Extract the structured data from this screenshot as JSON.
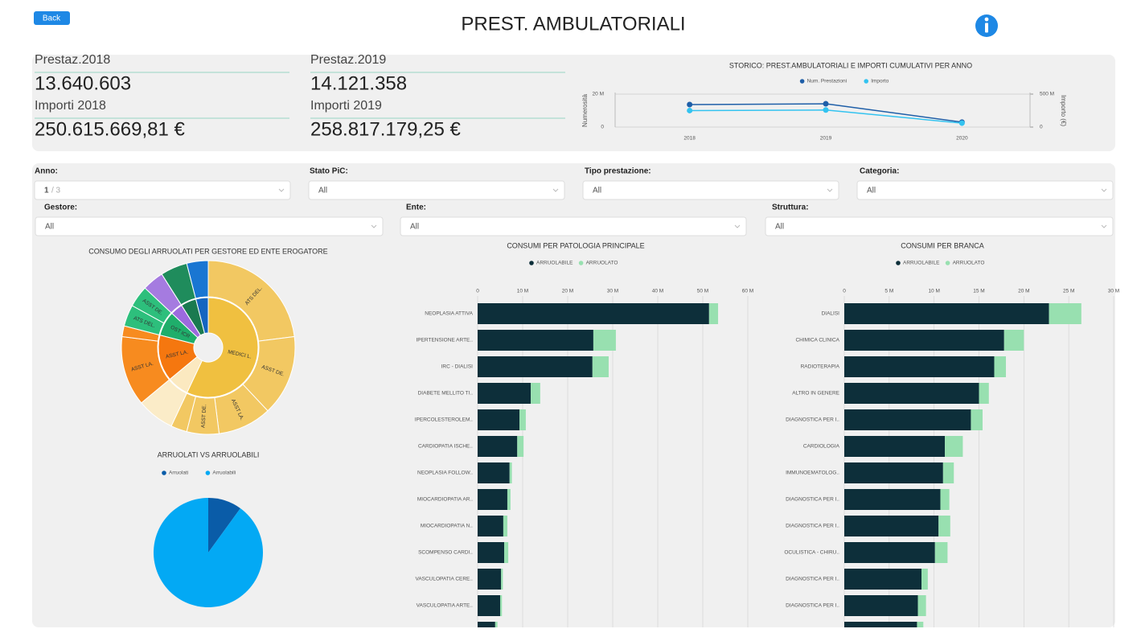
{
  "header": {
    "back": "Back",
    "title": "PREST. AMBULATORIALI"
  },
  "kpis": [
    {
      "label": "Prestaz.2018",
      "value": "13.640.603"
    },
    {
      "label": "Importi 2018",
      "value": "250.615.669,81 €"
    },
    {
      "label": "Prestaz.2019",
      "value": "14.121.358"
    },
    {
      "label": "Importi 2019",
      "value": "258.817.179,25 €"
    }
  ],
  "filters": [
    {
      "label": "Anno:",
      "value": "1",
      "count": "/ 3"
    },
    {
      "label": "Stato PiC:",
      "value": "All"
    },
    {
      "label": "Tipo prestazione:",
      "value": "All"
    },
    {
      "label": "Categoria:",
      "value": "All"
    },
    {
      "label": "Gestore:",
      "value": "All"
    },
    {
      "label": "Ente:",
      "value": "All"
    },
    {
      "label": "Struttura:",
      "value": "All"
    }
  ],
  "chart_data": [
    {
      "type": "line",
      "title": "STORICO: PREST.AMBULATORIALI E IMPORTI CUMULATIVI PER ANNO",
      "categories": [
        "2018",
        "2019",
        "2020"
      ],
      "series": [
        {
          "name": "Num. Prestazioni",
          "color": "#1f5fa8",
          "values": [
            13640603,
            14121358,
            3000000
          ]
        },
        {
          "name": "Importo",
          "color": "#33c3f0",
          "axis": "y2",
          "values": [
            250615669.81,
            258817179.25,
            60000000
          ]
        }
      ],
      "ylim": [
        0,
        20000000
      ],
      "yticks": [
        0,
        {
          "value": 20000000,
          "label": "20 M"
        }
      ],
      "y2lim": [
        0,
        500000000
      ],
      "y2ticks": [
        0,
        {
          "value": 500000000,
          "label": "500 M"
        }
      ],
      "ylabel": "Numerosità",
      "y2label": "Importo (€)",
      "legend": "top",
      "grid": true
    },
    {
      "type": "sunburst",
      "title": "CONSUMO DEGLI ARRUOLATI PER GESTORE ED ENTE EROGATORE",
      "inner": [
        {
          "label": "MEDICI L.",
          "value": 57,
          "color": "#f0c040"
        },
        {
          "label": null,
          "value": 7,
          "color": "#fbe9c0"
        },
        {
          "label": "ASST LA.",
          "value": 15,
          "color": "#f5770f"
        },
        {
          "label": "OST ICR",
          "value": 8,
          "color": "#1fae6b"
        },
        {
          "label": null,
          "value": 4,
          "color": "#9c6ade"
        },
        {
          "label": null,
          "value": 5,
          "color": "#1a7a50"
        },
        {
          "label": null,
          "value": 4,
          "color": "#1565c0"
        }
      ],
      "outer": [
        {
          "label": "ATS DEL.",
          "value": 23,
          "color": "#f2c862"
        },
        {
          "label": "ASST DE.",
          "value": 15,
          "color": "#f2c862"
        },
        {
          "label": "ASST LA.",
          "value": 10,
          "color": "#f2c862"
        },
        {
          "label": "ASST DE.",
          "value": 6,
          "color": "#f2c862"
        },
        {
          "label": null,
          "value": 3,
          "color": "#f2c862"
        },
        {
          "label": null,
          "value": 7,
          "color": "#fbecc8"
        },
        {
          "label": "ASST LA.",
          "value": 13,
          "color": "#f78b1f"
        },
        {
          "label": null,
          "value": 2,
          "color": "#f78b1f"
        },
        {
          "label": "ATS DEL.",
          "value": 4,
          "color": "#2dbf7c"
        },
        {
          "label": "ASST DE.",
          "value": 4,
          "color": "#2dbf7c"
        },
        {
          "label": null,
          "value": 4,
          "color": "#a57be0"
        },
        {
          "label": null,
          "value": 5,
          "color": "#1f8c5c"
        },
        {
          "label": null,
          "value": 4,
          "color": "#1976d2"
        }
      ]
    },
    {
      "type": "pie",
      "title": "ARRUOLATI VS ARRUOLABILI",
      "categories": [
        "Arruolati",
        "Arruolabili"
      ],
      "values": [
        10,
        90
      ],
      "colors": [
        "#0a5ca8",
        "#03a9f4"
      ],
      "legend": "top"
    },
    {
      "type": "bar",
      "orientation": "horizontal",
      "title": "CONSUMI PER PATOLOGIA PRINCIPALE",
      "categories": [
        "NEOPLASIA ATTIVA",
        "IPERTENSIONE ARTE..",
        "IRC - DIALISI",
        "DIABETE MELLITO TI..",
        "IPERCOLESTEROLEM..",
        "CARDIOPATIA ISCHE..",
        "NEOPLASIA FOLLOW..",
        "MIOCARDIOPATIA AR..",
        "MIOCARDIOPATIA N..",
        "SCOMPENSO CARDI..",
        "VASCULOPATIA CERE..",
        "VASCULOPATIA ARTE..",
        null
      ],
      "series": [
        {
          "name": "ARRUOLABILE",
          "color": "#0d2f3a",
          "values": [
            51400000,
            25700000,
            25500000,
            11800000,
            9300000,
            8800000,
            7100000,
            6600000,
            5700000,
            5900000,
            5200000,
            5000000,
            3900000
          ]
        },
        {
          "name": "ARRUOLATO",
          "color": "#98e0b0",
          "values": [
            2000000,
            5000000,
            3600000,
            2100000,
            1400000,
            1400000,
            500000,
            700000,
            900000,
            900000,
            400000,
            400000,
            500000
          ]
        }
      ],
      "xlim": [
        0,
        60000000
      ],
      "xticks": [
        0,
        {
          "value": 10000000,
          "label": "10 M"
        },
        {
          "value": 20000000,
          "label": "20 M"
        },
        {
          "value": 30000000,
          "label": "30 M"
        },
        {
          "value": 40000000,
          "label": "40 M"
        },
        {
          "value": 50000000,
          "label": "50 M"
        },
        {
          "value": 60000000,
          "label": "60 M"
        }
      ],
      "legend": "top",
      "grid": true
    },
    {
      "type": "bar",
      "orientation": "horizontal",
      "title": "CONSUMI PER BRANCA",
      "categories": [
        "DIALISI",
        "CHIMICA CLINICA",
        "RADIOTERAPIA",
        "ALTRO IN GENERE",
        "DIAGNOSTICA PER I..",
        "CARDIOLOGIA",
        "IMMUNOEMATOLOG..",
        "DIAGNOSTICA PER I..",
        "DIAGNOSTICA PER I..",
        "OCULISTICA - CHIRU..",
        "DIAGNOSTICA PER I..",
        "DIAGNOSTICA PER I..",
        null
      ],
      "series": [
        {
          "name": "ARRUOLABILE",
          "color": "#0d2f3a",
          "values": [
            22800000,
            17800000,
            16700000,
            15000000,
            14100000,
            11200000,
            11000000,
            10700000,
            10500000,
            10100000,
            8600000,
            8200000,
            8100000
          ]
        },
        {
          "name": "ARRUOLATO",
          "color": "#98e0b0",
          "values": [
            3600000,
            2200000,
            1300000,
            1100000,
            1300000,
            2000000,
            1200000,
            1000000,
            1300000,
            1400000,
            700000,
            900000,
            700000
          ]
        }
      ],
      "xlim": [
        0,
        30000000
      ],
      "xticks": [
        0,
        {
          "value": 5000000,
          "label": "5 M"
        },
        {
          "value": 10000000,
          "label": "10 M"
        },
        {
          "value": 15000000,
          "label": "15 M"
        },
        {
          "value": 20000000,
          "label": "20 M"
        },
        {
          "value": 25000000,
          "label": "25 M"
        },
        {
          "value": 30000000,
          "label": "30 M"
        }
      ],
      "legend": "top",
      "grid": true
    }
  ]
}
